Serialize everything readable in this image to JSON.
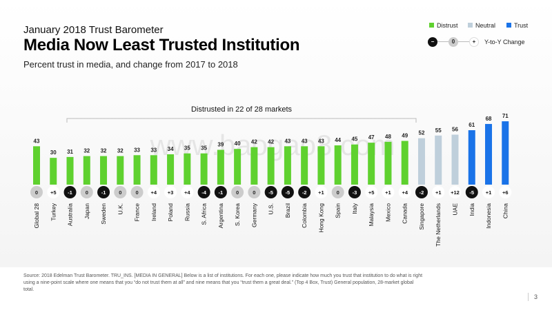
{
  "header": {
    "kicker": "January 2018 Trust Barometer",
    "title": "Media Now Least Trusted Institution",
    "subtitle": "Percent trust in media, and change from 2017 to 2018"
  },
  "legend": {
    "distrust": "Distrust",
    "neutral": "Neutral",
    "trust": "Trust",
    "change_label": "Y-to-Y Change",
    "change_minus": "−",
    "change_zero": "0",
    "change_plus": "+"
  },
  "colors": {
    "distrust": "#5fd12f",
    "neutral": "#bfcfdb",
    "trust": "#1a73e8"
  },
  "watermark": "www.baogao8.com",
  "footer": {
    "source": "Source: 2018 Edelman Trust Barometer. TRU_INS. [MEDIA IN GENERAL] Below is a list of institutions. For each one, please indicate how much you trust that institution to do what is right using a nine-point scale where one means that you “do not trust them at all” and nine means that you “trust them a great deal.” (Top 4 Box, Trust) General population, 28-market global total.",
    "page": "3"
  },
  "chart_data": {
    "type": "bar",
    "title": "Percent trust in media, and change from 2017 to 2018",
    "annotation": "Distrusted in 22 of 28 markets",
    "ylim": [
      0,
      80
    ],
    "categories": [
      "Global 28",
      "Turkey",
      "Australia",
      "Japan",
      "Sweden",
      "U.K.",
      "France",
      "Ireland",
      "Poland",
      "Russia",
      "S. Africa",
      "Argentina",
      "S. Korea",
      "Germany",
      "U.S.",
      "Brazil",
      "Colombia",
      "Hong Kong",
      "Spain",
      "Italy",
      "Malaysia",
      "Mexico",
      "Canada",
      "Singapore",
      "The Netherlands",
      "UAE",
      "India",
      "Indonesia",
      "China"
    ],
    "values": [
      43,
      30,
      31,
      32,
      32,
      32,
      33,
      33,
      34,
      35,
      35,
      39,
      40,
      42,
      42,
      43,
      43,
      43,
      44,
      45,
      47,
      48,
      49,
      52,
      55,
      56,
      61,
      68,
      71
    ],
    "changes": [
      "0",
      "+5",
      "-1",
      "0",
      "-1",
      "0",
      "0",
      "+4",
      "+3",
      "+4",
      "-4",
      "-1",
      "0",
      "0",
      "-5",
      "-5",
      "-2",
      "+1",
      "0",
      "-3",
      "+5",
      "+1",
      "+4",
      "-2",
      "+1",
      "+12",
      "-5",
      "+1",
      "+6"
    ],
    "category_class": [
      "distrust",
      "distrust",
      "distrust",
      "distrust",
      "distrust",
      "distrust",
      "distrust",
      "distrust",
      "distrust",
      "distrust",
      "distrust",
      "distrust",
      "distrust",
      "distrust",
      "distrust",
      "distrust",
      "distrust",
      "distrust",
      "distrust",
      "distrust",
      "distrust",
      "distrust",
      "distrust",
      "neutral",
      "neutral",
      "neutral",
      "trust",
      "trust",
      "trust"
    ]
  }
}
